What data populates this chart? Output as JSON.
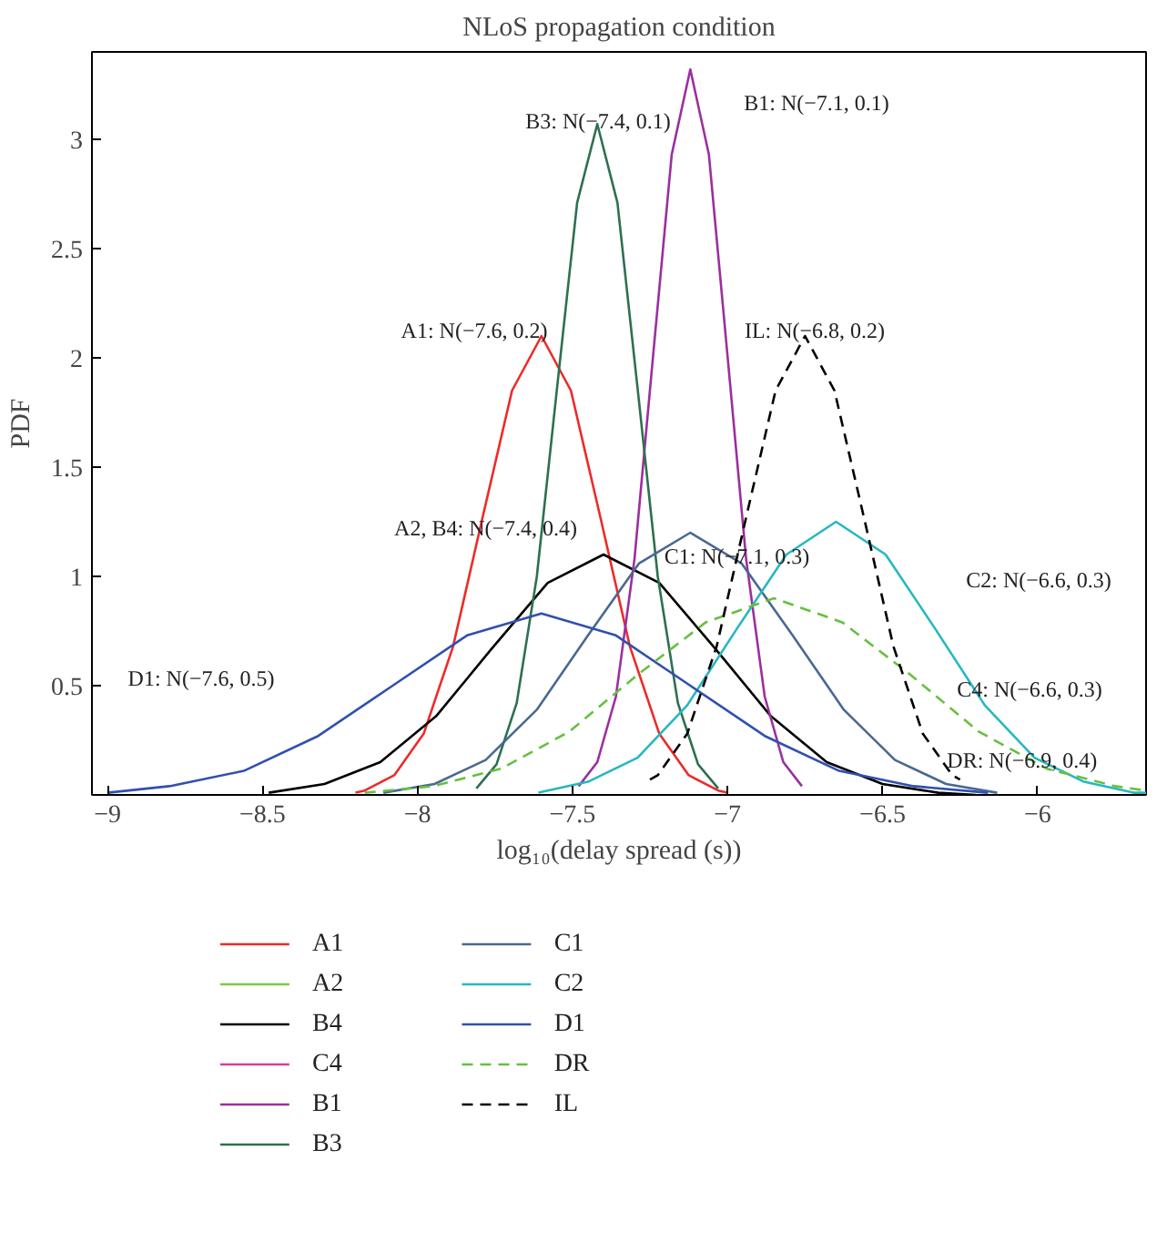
{
  "chart_data": {
    "type": "line",
    "title": "NLoS propagation condition",
    "xlabel": "log₁₀(delay spread (s))",
    "ylabel": "PDF",
    "xlim": [
      -9.05,
      -5.65
    ],
    "ylim": [
      0,
      3.4
    ],
    "xticks": [
      {
        "value": -9,
        "label": "−9"
      },
      {
        "value": -8.5,
        "label": "−8.5"
      },
      {
        "value": -8,
        "label": "−8"
      },
      {
        "value": -7.5,
        "label": "−7.5"
      },
      {
        "value": -7,
        "label": "−7"
      },
      {
        "value": -6.5,
        "label": "−6.5"
      },
      {
        "value": -6,
        "label": "−6"
      }
    ],
    "yticks": [
      0.5,
      1,
      1.5,
      2,
      2.5,
      3
    ],
    "grid": false,
    "legend": "bottom",
    "series": [
      {
        "name": "A1",
        "color": "#ee2a2a",
        "x": [
          -8.2,
          -8.17,
          -8.075,
          -7.98,
          -7.885,
          -7.79,
          -7.695,
          -7.6,
          -7.505,
          -7.41,
          -7.315,
          -7.22,
          -7.125,
          -7.03,
          -7.0
        ],
        "values": [
          0.01,
          0.02,
          0.09,
          0.28,
          0.68,
          1.27,
          1.85,
          2.1,
          1.85,
          1.27,
          0.68,
          0.28,
          0.09,
          0.02,
          0.01
        ]
      },
      {
        "name": "A2",
        "color": "#7ac943",
        "values": [
          null,
          null,
          null,
          null,
          null,
          null,
          null,
          null,
          null,
          null,
          null,
          null,
          null,
          null
        ]
      },
      {
        "name": "B4",
        "color": "#000000",
        "x": [
          -8.48,
          -8.3,
          -8.12,
          -7.94,
          -7.76,
          -7.58,
          -7.4,
          -7.22,
          -7.04,
          -6.86,
          -6.68,
          -6.5,
          -6.32,
          -6.2
        ],
        "values": [
          0.01,
          0.05,
          0.15,
          0.36,
          0.67,
          0.97,
          1.1,
          0.97,
          0.67,
          0.36,
          0.15,
          0.05,
          0.01,
          0.0
        ]
      },
      {
        "name": "C4",
        "color": "#d6409a",
        "values": [
          null,
          null,
          null,
          null,
          null,
          null,
          null,
          null,
          null,
          null,
          null,
          null,
          null,
          null
        ]
      },
      {
        "name": "B1",
        "color": "#9b2f9f",
        "x": [
          -7.48,
          -7.42,
          -7.36,
          -7.3,
          -7.24,
          -7.18,
          -7.12,
          -7.06,
          -7.0,
          -6.94,
          -6.88,
          -6.82,
          -6.76
        ],
        "values": [
          0.04,
          0.15,
          0.45,
          1.08,
          2.01,
          2.93,
          3.32,
          2.93,
          2.01,
          1.08,
          0.45,
          0.15,
          0.04
        ]
      },
      {
        "name": "B3",
        "color": "#2e7050",
        "x": [
          -7.81,
          -7.745,
          -7.68,
          -7.615,
          -7.55,
          -7.485,
          -7.42,
          -7.355,
          -7.29,
          -7.225,
          -7.16,
          -7.095,
          -7.03
        ],
        "values": [
          0.03,
          0.14,
          0.42,
          1.0,
          1.86,
          2.71,
          3.07,
          2.71,
          1.86,
          1.0,
          0.42,
          0.14,
          0.03
        ]
      },
      {
        "name": "C1",
        "color": "#4a6890",
        "x": [
          -8.11,
          -7.945,
          -7.78,
          -7.615,
          -7.45,
          -7.285,
          -7.12,
          -6.955,
          -6.79,
          -6.625,
          -6.46,
          -6.295,
          -6.13
        ],
        "values": [
          0.01,
          0.05,
          0.16,
          0.39,
          0.73,
          1.06,
          1.2,
          1.06,
          0.73,
          0.39,
          0.16,
          0.05,
          0.01
        ]
      },
      {
        "name": "C2",
        "color": "#26b8c0",
        "x": [
          -7.61,
          -7.45,
          -7.29,
          -7.13,
          -6.97,
          -6.81,
          -6.65,
          -6.49,
          -6.33,
          -6.17,
          -6.01,
          -5.85,
          -5.69,
          -5.65
        ],
        "values": [
          0.01,
          0.06,
          0.17,
          0.41,
          0.76,
          1.1,
          1.25,
          1.1,
          0.76,
          0.41,
          0.17,
          0.06,
          0.01,
          0.01
        ]
      },
      {
        "name": "D1",
        "color": "#3050b0",
        "x": [
          -9.0,
          -8.8,
          -8.56,
          -8.32,
          -8.08,
          -7.84,
          -7.6,
          -7.36,
          -7.12,
          -6.88,
          -6.64,
          -6.4,
          -6.16
        ],
        "values": [
          0.01,
          0.04,
          0.11,
          0.27,
          0.5,
          0.73,
          0.83,
          0.73,
          0.5,
          0.27,
          0.11,
          0.04,
          0.01
        ]
      },
      {
        "name": "DR",
        "color": "#66c040",
        "line_style": "dashed",
        "x": [
          -8.17,
          -7.95,
          -7.73,
          -7.51,
          -7.29,
          -7.07,
          -6.85,
          -6.63,
          -6.41,
          -6.19,
          -5.97,
          -5.75,
          -5.65
        ],
        "values": [
          0.01,
          0.04,
          0.12,
          0.29,
          0.55,
          0.79,
          0.9,
          0.79,
          0.55,
          0.29,
          0.12,
          0.04,
          0.02
        ]
      },
      {
        "name": "IL",
        "color": "#000000",
        "line_style": "dashed",
        "x": [
          -7.25,
          -7.225,
          -7.13,
          -7.035,
          -6.94,
          -6.845,
          -6.75,
          -6.655,
          -6.56,
          -6.465,
          -6.37,
          -6.275,
          -6.25
        ],
        "values": [
          0.07,
          0.09,
          0.28,
          0.68,
          1.27,
          1.85,
          2.1,
          1.85,
          1.27,
          0.68,
          0.28,
          0.09,
          0.07
        ]
      }
    ],
    "annotations": [
      "B3: N(−7.4, 0.1)",
      "B1: N(−7.1, 0.1)",
      "A1: N(−7.6, 0.2)",
      "IL: N(−6.8, 0.2)",
      {
        "text": "A2, B4: N(−7.4, 0.4)",
        "x": -7.78,
        "y": 1.22
      },
      {
        "text": "C1: N(−7.1, 0.3)",
        "x": -6.97,
        "y": 1.09
      },
      "C2: N(−6.6, 0.3)",
      "D1: N(−7.6, 0.5)",
      "C4: N(−6.6, 0.3)",
      {
        "text": "DR: N(−6.9, 0.4)",
        "x": -6.05,
        "y": 0.16
      }
    ]
  }
}
